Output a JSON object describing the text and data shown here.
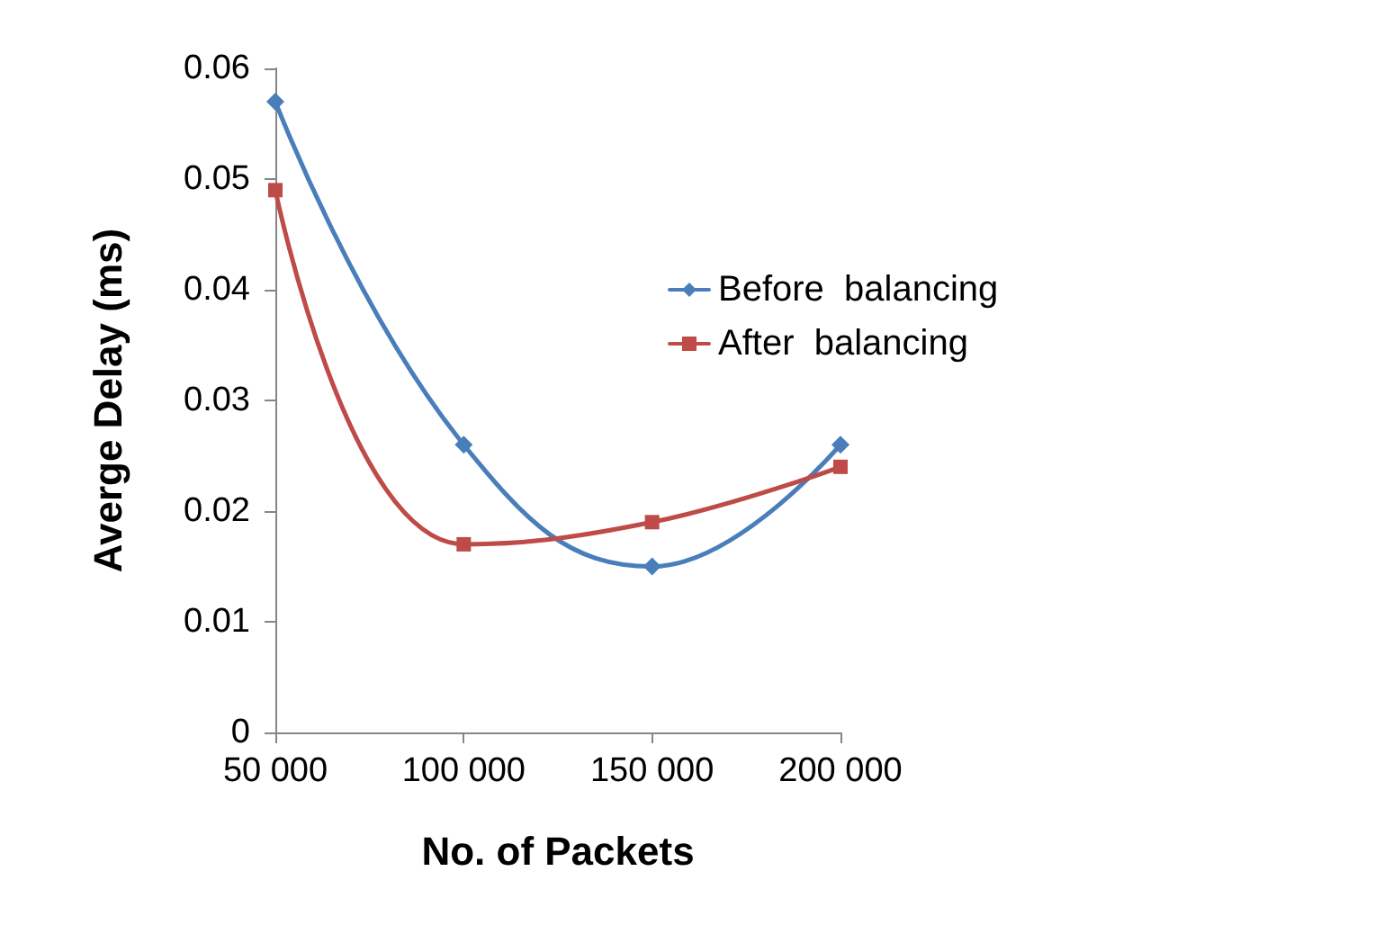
{
  "chart_data": {
    "type": "line",
    "xlabel": "No. of Packets",
    "ylabel": "Averge Delay (ms)",
    "categories": [
      "50 000",
      "100 000",
      "150 000",
      "200 000"
    ],
    "series": [
      {
        "name": "Before  balancing",
        "color": "#4a7ebb",
        "marker": "diamond",
        "values": [
          0.057,
          0.026,
          0.015,
          0.026
        ]
      },
      {
        "name": "After  balancing",
        "color": "#be4b48",
        "marker": "square",
        "values": [
          0.049,
          0.017,
          0.019,
          0.024
        ]
      }
    ],
    "ylim": [
      0,
      0.06
    ],
    "yticks": [
      0,
      0.01,
      0.02,
      0.03,
      0.04,
      0.05,
      0.06
    ],
    "grid": false,
    "legend": "right"
  }
}
